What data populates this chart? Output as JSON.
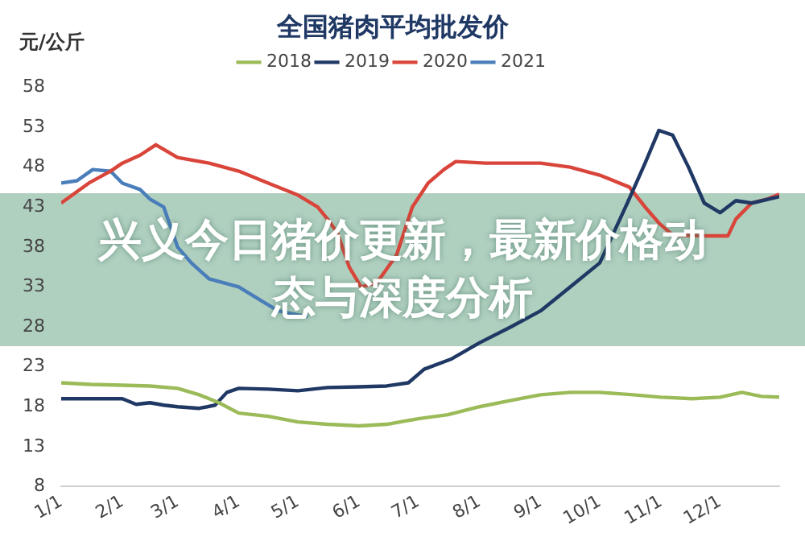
{
  "chart_data": {
    "type": "line",
    "title": "全国猪肉平均批发价",
    "ylabel": "元/公斤",
    "annotations": [
      "兴义今日猪价更新，最新价格动态与深度分析"
    ],
    "xlim": [
      "--01-01",
      "--12-31"
    ],
    "xticks": [
      {
        "value": "--01-01",
        "label": "1/1"
      },
      {
        "value": "--02-01",
        "label": "2/1"
      },
      {
        "value": "--03-01",
        "label": "3/1"
      },
      {
        "value": "--04-01",
        "label": "4/1"
      },
      {
        "value": "--05-01",
        "label": "5/1"
      },
      {
        "value": "--06-01",
        "label": "6/1"
      },
      {
        "value": "--07-01",
        "label": "7/1"
      },
      {
        "value": "--08-01",
        "label": "8/1"
      },
      {
        "value": "--09-01",
        "label": "9/1"
      },
      {
        "value": "--10-01",
        "label": "10/1"
      },
      {
        "value": "--11-01",
        "label": "11/1"
      },
      {
        "value": "--12-01",
        "label": "12/1"
      }
    ],
    "ylim": [
      8,
      58
    ],
    "yticks": [
      8,
      13,
      18,
      23,
      28,
      33,
      38,
      43,
      48,
      53,
      58
    ],
    "grid": false,
    "legend": "top",
    "marker": "none",
    "line_style": "solid",
    "series": [
      {
        "name": "2018",
        "color": "#9bbb59",
        "x": [
          "--01-01",
          "--01-16",
          "--02-01",
          "--02-15",
          "--03-01",
          "--03-12",
          "--03-22",
          "--04-01",
          "--04-16",
          "--05-01",
          "--05-16",
          "--06-01",
          "--06-15",
          "--07-01",
          "--07-16",
          "--08-01",
          "--08-17",
          "--09-01",
          "--09-16",
          "--10-01",
          "--10-18",
          "--11-01",
          "--11-17",
          "--12-01",
          "--12-12",
          "--12-22",
          "--12-31"
        ],
        "values": [
          21,
          20.8,
          20.7,
          20.6,
          20.3,
          19.5,
          18.5,
          17.2,
          16.8,
          16.1,
          15.8,
          15.6,
          15.8,
          16.5,
          17,
          18,
          18.8,
          19.5,
          19.8,
          19.8,
          19.5,
          19.2,
          19,
          19.2,
          19.8,
          19.3,
          19.2
        ]
      },
      {
        "name": "2019",
        "color": "#1f3864",
        "x": [
          "--01-01",
          "--01-16",
          "--02-01",
          "--02-08",
          "--02-15",
          "--02-22",
          "--03-01",
          "--03-12",
          "--03-20",
          "--03-26",
          "--04-01",
          "--04-16",
          "--05-01",
          "--05-16",
          "--06-01",
          "--06-15",
          "--06-26",
          "--07-04",
          "--07-18",
          "--08-01",
          "--08-17",
          "--09-01",
          "--09-16",
          "--10-01",
          "--10-15",
          "--10-24",
          "--10-31",
          "--11-07",
          "--11-15",
          "--11-23",
          "--12-01",
          "--12-09",
          "--12-17",
          "--12-31"
        ],
        "values": [
          19,
          19,
          19,
          18.3,
          18.5,
          18.2,
          18,
          17.8,
          18.2,
          19.8,
          20.3,
          20.2,
          20,
          20.4,
          20.5,
          20.6,
          21,
          22.7,
          24,
          26,
          28,
          30,
          33,
          36,
          43.5,
          48.5,
          52.6,
          52,
          48,
          43.5,
          42.3,
          43.8,
          43.5,
          44.3
        ]
      },
      {
        "name": "2020",
        "color": "#d9453a",
        "x": [
          "--01-01",
          "--01-15",
          "--01-26",
          "--02-01",
          "--02-10",
          "--02-18",
          "--03-01",
          "--03-17",
          "--04-01",
          "--04-16",
          "--05-01",
          "--05-11",
          "--05-16",
          "--05-21",
          "--05-27",
          "--06-02",
          "--06-10",
          "--06-20",
          "--06-28",
          "--07-06",
          "--07-14",
          "--07-20",
          "--08-04",
          "--09-01",
          "--09-16",
          "--10-01",
          "--10-16",
          "--10-24",
          "--10-31",
          "--11-07",
          "--11-22",
          "--12-05",
          "--12-09",
          "--12-17",
          "--12-25",
          "--12-31"
        ],
        "values": [
          43.5,
          46,
          47.5,
          48.5,
          49.5,
          50.8,
          49.2,
          48.5,
          47.5,
          46,
          44.5,
          43,
          41.5,
          39.8,
          35.5,
          33,
          33.5,
          37,
          43,
          46,
          47.7,
          48.7,
          48.5,
          48.5,
          48,
          47,
          45.5,
          43,
          41,
          39.5,
          39.4,
          39.4,
          41.5,
          43.5,
          44,
          44.6
        ]
      },
      {
        "name": "2021",
        "color": "#4a7ebb",
        "x": [
          "--01-01",
          "--01-09",
          "--01-17",
          "--01-26",
          "--02-01",
          "--02-10",
          "--02-15",
          "--02-22",
          "--03-01",
          "--03-08",
          "--03-17",
          "--04-01",
          "--04-11",
          "--04-21",
          "--05-01",
          "--05-06"
        ],
        "values": [
          46,
          46.3,
          47.7,
          47.5,
          46,
          45.2,
          44,
          43,
          38,
          36,
          34,
          33,
          31.5,
          30,
          29.5,
          29.3
        ]
      }
    ]
  }
}
